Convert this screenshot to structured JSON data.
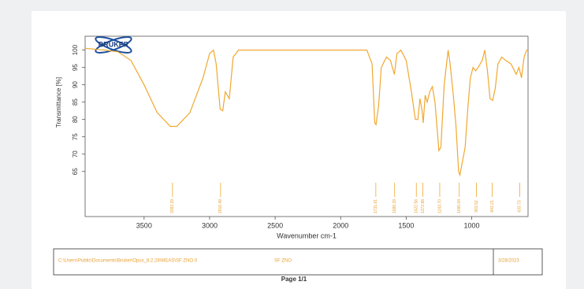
{
  "chart_data": {
    "type": "line",
    "logo": "BRUKER",
    "xlabel": "Wavenumber cm-1",
    "ylabel": "Transmittance [%]",
    "color": "#f0a830",
    "x": [
      3950,
      3800,
      3700,
      3600,
      3500,
      3400,
      3300,
      3250,
      3150,
      3050,
      3000,
      2970,
      2950,
      2920,
      2900,
      2880,
      2850,
      2820,
      2780,
      2500,
      2000,
      1800,
      1760,
      1740,
      1730,
      1710,
      1690,
      1650,
      1620,
      1590,
      1570,
      1540,
      1500,
      1460,
      1430,
      1410,
      1395,
      1380,
      1370,
      1355,
      1340,
      1320,
      1300,
      1280,
      1250,
      1235,
      1210,
      1180,
      1165,
      1140,
      1120,
      1100,
      1090,
      1070,
      1050,
      1030,
      1010,
      990,
      970,
      950,
      920,
      900,
      880,
      860,
      840,
      820,
      800,
      770,
      740,
      700,
      660,
      640,
      620,
      600,
      580,
      570
    ],
    "values": [
      100.5,
      100,
      99.5,
      97,
      90,
      82,
      78,
      78,
      82,
      92,
      99,
      100,
      96,
      83,
      82.5,
      88,
      86,
      98,
      100,
      100,
      100,
      100,
      96,
      79,
      78.5,
      84,
      95,
      98,
      97,
      93,
      99,
      100,
      97,
      88,
      80,
      80,
      86,
      83,
      79,
      87,
      85,
      88,
      89.5,
      85,
      71,
      72,
      90,
      100,
      96,
      87,
      78,
      65,
      64,
      68,
      72,
      83,
      92,
      95,
      94,
      95,
      97,
      100,
      94,
      86,
      85.5,
      89,
      96,
      98,
      97,
      96,
      93,
      95,
      92,
      98,
      100,
      100
    ],
    "xlim": [
      3950,
      570
    ],
    "xticks": [
      3500,
      3000,
      2500,
      2000,
      1500,
      1000
    ],
    "ylim": [
      52,
      104
    ],
    "yticks": [
      65,
      70,
      75,
      80,
      85,
      90,
      95,
      100
    ],
    "peaks": [
      3283.29,
      2916.48,
      1731.61,
      1588.29,
      1422.56,
      1372.88,
      {
        "value": 1243.7,
        "label": "1243.70"
      },
      1095.04,
      963.52,
      843.21,
      633.73
    ]
  },
  "footer": {
    "file": "C:\\Users\\Public\\Documents\\Bruker\\Opus_8.2.28\\MEAS\\SF ZNO.0",
    "sample": "SF ZNO",
    "date": "3/28/2023"
  },
  "page": "Page 1/1"
}
